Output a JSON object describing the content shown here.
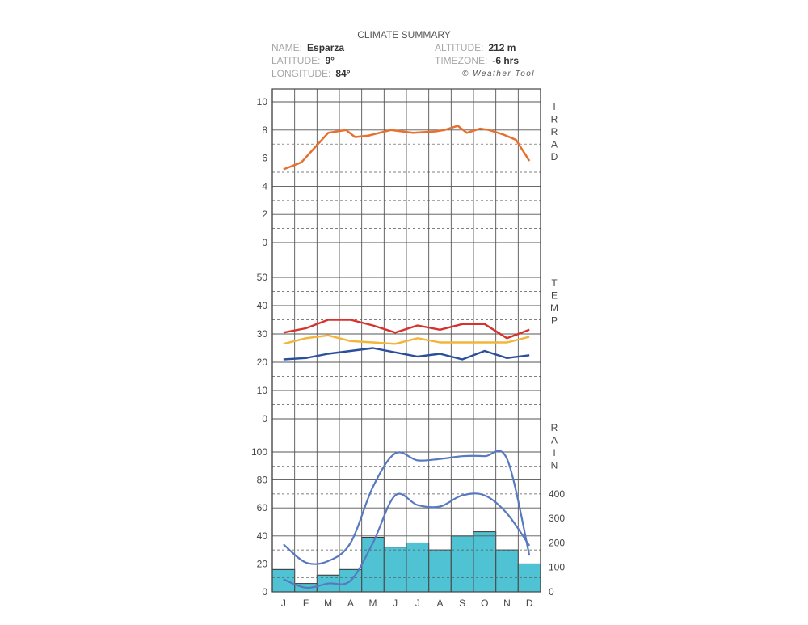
{
  "header": {
    "title": "CLIMATE SUMMARY",
    "name_label": "NAME:",
    "name_value": "Esparza",
    "latitude_label": "LATITUDE:",
    "latitude_value": "9°",
    "longitude_label": "LONGITUDE:",
    "longitude_value": "84°",
    "altitude_label": "ALTITUDE:",
    "altitude_value": "212 m",
    "timezone_label": "TIMEZONE:",
    "timezone_value": "-6 hrs",
    "credit": "© Weather Tool"
  },
  "colors": {
    "irrad": "#e8702f",
    "temp_max": "#d8322c",
    "temp_mean": "#f2b53a",
    "temp_min": "#2c4f9c",
    "rain_line": "#5878c0",
    "rain_bar": "#4fc3d3"
  },
  "chart_data": {
    "type": "line",
    "months": [
      "J",
      "F",
      "M",
      "A",
      "M",
      "J",
      "J",
      "A",
      "S",
      "O",
      "N",
      "D"
    ],
    "panels": [
      {
        "name": "irradiation",
        "label_letters": [
          "I",
          "R",
          "R",
          "A",
          "D"
        ],
        "ylim": [
          0,
          10
        ],
        "yticks": [
          0,
          2,
          4,
          6,
          8,
          10
        ],
        "series": [
          {
            "x": [
              0,
              0.8,
              2,
              2.8,
              3.2,
              3.8,
              4.8,
              5.8,
              6.8,
              7.2,
              7.8,
              8.2,
              8.8,
              9.2,
              9.8,
              10.4,
              11
            ],
            "values": [
              5.2,
              5.7,
              7.8,
              8.0,
              7.5,
              7.6,
              8.0,
              7.8,
              7.9,
              8.0,
              8.3,
              7.8,
              8.1,
              8.0,
              7.7,
              7.3,
              5.8
            ]
          }
        ]
      },
      {
        "name": "temperature",
        "label_letters": [
          "T",
          "E",
          "M",
          "P"
        ],
        "ylim": [
          0,
          50
        ],
        "yticks": [
          0,
          10,
          20,
          30,
          40,
          50
        ],
        "series": [
          {
            "values": [
              30.5,
              32,
              35,
              35,
              33,
              30.5,
              33,
              31.5,
              33.5,
              33.5,
              28.5,
              31.5
            ]
          },
          {
            "values": [
              26.5,
              28.5,
              29.5,
              27.5,
              27,
              26.5,
              28.5,
              27,
              27,
              27,
              27,
              29
            ]
          },
          {
            "values": [
              21,
              21.5,
              23,
              24,
              25,
              23.5,
              22,
              23,
              21,
              24,
              21.5,
              22.5
            ]
          }
        ]
      },
      {
        "name": "rain",
        "label_letters": [
          "R",
          "A",
          "I",
          "N"
        ],
        "ylim": [
          0,
          100
        ],
        "yticks": [
          0,
          20,
          40,
          60,
          80,
          100
        ],
        "right_yticks": [
          0,
          100,
          200,
          300,
          400
        ],
        "bars": [
          16,
          6,
          12,
          16,
          39,
          32,
          35,
          30,
          40,
          43,
          30,
          20
        ],
        "series": [
          {
            "values": [
              34,
              21,
              22,
              35,
              75,
              99,
              94,
              95,
              97,
              97,
              95,
              26
            ]
          },
          {
            "values": [
              9,
              3,
              6,
              8,
              35,
              69,
              62,
              61,
              69,
              69,
              56,
              33
            ]
          }
        ]
      }
    ]
  }
}
